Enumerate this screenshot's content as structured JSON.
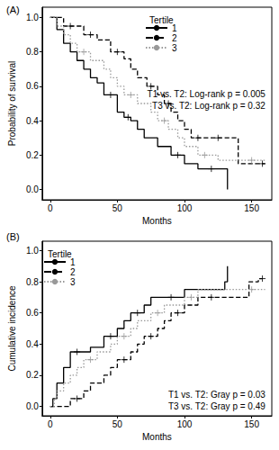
{
  "chart_data": [
    {
      "type": "line",
      "title": "(A)",
      "x_label": "Months",
      "y_label": "Probability of survival",
      "xlim": [
        -6,
        165
      ],
      "xticks": [
        0,
        50,
        100,
        150
      ],
      "ylim": [
        -0.06,
        1.06
      ],
      "yticks": [
        {
          "value": 0,
          "label": "0.0"
        },
        {
          "value": 0.2,
          "label": "0.2"
        },
        {
          "value": 0.4,
          "label": "0.4"
        },
        {
          "value": 0.6,
          "label": "0.6"
        },
        {
          "value": 0.8,
          "label": "0.8"
        },
        {
          "value": 1,
          "label": "1.0"
        }
      ],
      "legend": "top",
      "legend_title": "Tertile",
      "annotations": [
        "T1 vs. T2: Log-rank p = 0.005",
        "T3 vs. T2: Log-rank p = 0.32"
      ],
      "series": [
        {
          "name": "1",
          "color": "#000000",
          "line_style": "solid",
          "marker": "plus",
          "x": [
            0,
            5,
            10,
            15,
            20,
            25,
            30,
            35,
            40,
            50,
            55,
            60,
            65,
            70,
            80,
            90,
            100,
            110,
            132
          ],
          "values": [
            1,
            0.93,
            0.85,
            0.8,
            0.75,
            0.7,
            0.65,
            0.62,
            0.55,
            0.45,
            0.42,
            0.4,
            0.35,
            0.3,
            0.25,
            0.2,
            0.15,
            0.12,
            0
          ],
          "censored_x": [
            45,
            58,
            95,
            120
          ],
          "censored_y": [
            0.55,
            0.42,
            0.2,
            0.12
          ]
        },
        {
          "name": "2",
          "color": "#000000",
          "line_style": "dashed",
          "marker": "plus",
          "x": [
            0,
            10,
            25,
            35,
            45,
            55,
            60,
            65,
            72,
            80,
            85,
            90,
            95,
            100,
            105,
            140,
            160
          ],
          "values": [
            1,
            0.95,
            0.9,
            0.87,
            0.8,
            0.76,
            0.7,
            0.65,
            0.6,
            0.55,
            0.5,
            0.45,
            0.4,
            0.35,
            0.3,
            0.15,
            0.15
          ],
          "censored_x": [
            15,
            30,
            50,
            75,
            88,
            110,
            125,
            158
          ],
          "censored_y": [
            0.95,
            0.9,
            0.8,
            0.6,
            0.5,
            0.3,
            0.3,
            0.15
          ]
        },
        {
          "name": "3",
          "color": "#999999",
          "line_style": "dotted",
          "marker": "plus",
          "x": [
            0,
            5,
            10,
            15,
            20,
            30,
            40,
            45,
            50,
            55,
            65,
            75,
            80,
            88,
            95,
            100,
            110,
            125,
            160
          ],
          "values": [
            1,
            0.95,
            0.9,
            0.85,
            0.8,
            0.75,
            0.7,
            0.65,
            0.6,
            0.55,
            0.5,
            0.45,
            0.4,
            0.35,
            0.3,
            0.25,
            0.2,
            0.17,
            0.17
          ],
          "censored_x": [
            25,
            60,
            85,
            115,
            150
          ],
          "censored_y": [
            0.8,
            0.55,
            0.4,
            0.2,
            0.17
          ]
        }
      ]
    },
    {
      "type": "line",
      "title": "(B)",
      "x_label": "Months",
      "y_label": "Cumulative incidence",
      "xlim": [
        -6,
        165
      ],
      "xticks": [
        0,
        50,
        100,
        150
      ],
      "ylim": [
        -0.06,
        1.06
      ],
      "yticks": [
        {
          "value": 0,
          "label": "0.0"
        },
        {
          "value": 0.2,
          "label": "0.2"
        },
        {
          "value": 0.4,
          "label": "0.4"
        },
        {
          "value": 0.6,
          "label": "0.6"
        },
        {
          "value": 0.8,
          "label": "0.8"
        },
        {
          "value": 1,
          "label": "1.0"
        }
      ],
      "legend": "top left",
      "legend_title": "Tertile",
      "annotations": [
        "T1 vs. T2: Gray p = 0.03",
        "T3 vs. T2: Gray p = 0.49"
      ],
      "series": [
        {
          "name": "1",
          "color": "#000000",
          "line_style": "solid",
          "marker": "plus",
          "x": [
            0,
            2,
            5,
            10,
            15,
            30,
            40,
            50,
            55,
            60,
            70,
            75,
            100,
            130,
            132
          ],
          "values": [
            0,
            0.05,
            0.15,
            0.25,
            0.35,
            0.38,
            0.45,
            0.5,
            0.55,
            0.6,
            0.65,
            0.7,
            0.75,
            0.8,
            0.9
          ],
          "censored_x": [
            20,
            45,
            65,
            90
          ],
          "censored_y": [
            0.35,
            0.45,
            0.6,
            0.7
          ]
        },
        {
          "name": "2",
          "color": "#000000",
          "line_style": "dashed",
          "marker": "plus",
          "x": [
            0,
            10,
            15,
            25,
            30,
            40,
            45,
            50,
            60,
            65,
            70,
            80,
            85,
            90,
            100,
            110,
            145,
            148,
            155,
            158
          ],
          "values": [
            0,
            0,
            0.05,
            0.1,
            0.15,
            0.2,
            0.25,
            0.3,
            0.35,
            0.4,
            0.45,
            0.5,
            0.55,
            0.6,
            0.65,
            0.7,
            0.7,
            0.8,
            0.82,
            0.82
          ],
          "censored_x": [
            20,
            55,
            75,
            95,
            120,
            158
          ],
          "censored_y": [
            0.05,
            0.3,
            0.45,
            0.6,
            0.7,
            0.82
          ]
        },
        {
          "name": "3",
          "color": "#999999",
          "line_style": "dotted",
          "marker": "plus",
          "x": [
            0,
            3,
            5,
            10,
            15,
            20,
            25,
            35,
            45,
            50,
            60,
            65,
            75,
            85,
            100,
            110,
            160
          ],
          "values": [
            0,
            0.05,
            0.1,
            0.15,
            0.2,
            0.25,
            0.3,
            0.35,
            0.4,
            0.45,
            0.5,
            0.55,
            0.6,
            0.65,
            0.7,
            0.75,
            0.75
          ],
          "censored_x": [
            30,
            55,
            80,
            105,
            150
          ],
          "censored_y": [
            0.3,
            0.45,
            0.6,
            0.7,
            0.75
          ]
        }
      ]
    }
  ]
}
